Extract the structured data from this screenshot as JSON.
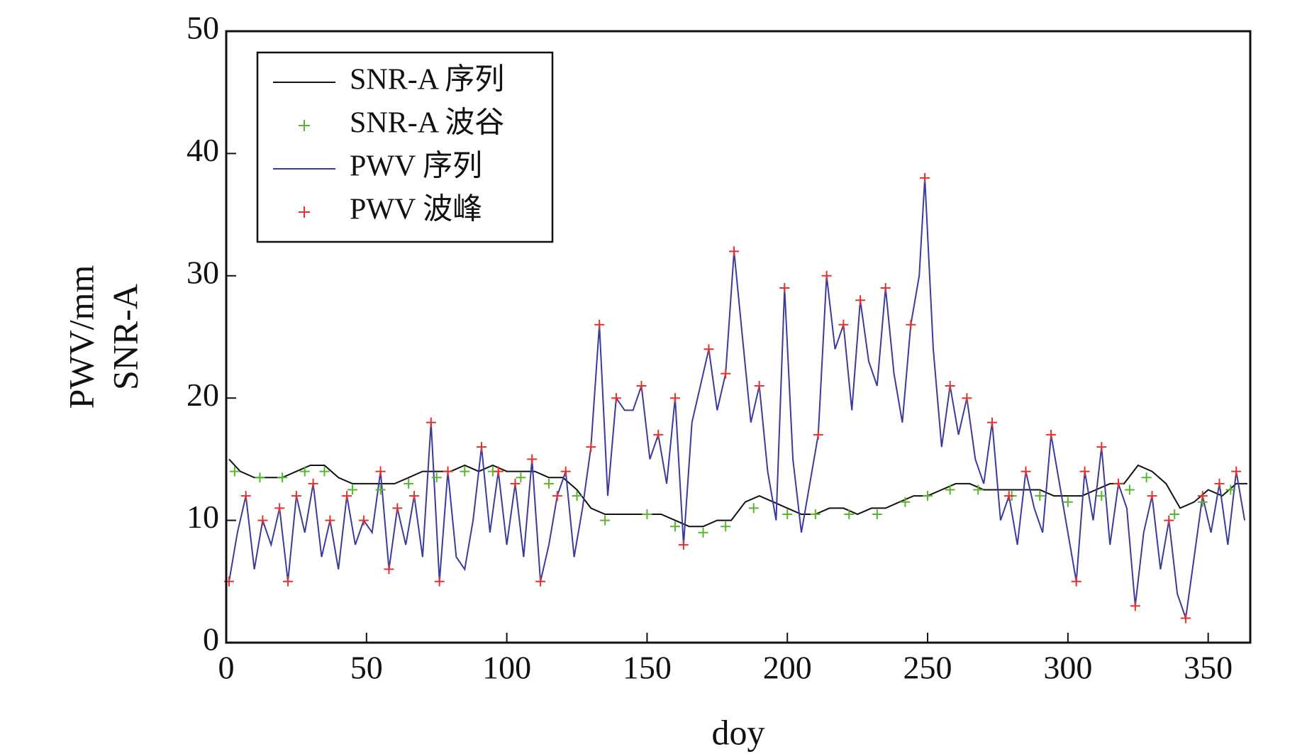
{
  "chart_data": {
    "type": "line",
    "xlabel": "doy",
    "ylabel": [
      "PWV/mm",
      "SNR-A"
    ],
    "xlim": [
      0,
      365
    ],
    "xticks": [
      0,
      50,
      100,
      150,
      200,
      250,
      300,
      350
    ],
    "ylim": [
      0,
      50
    ],
    "yticks": [
      0,
      10,
      20,
      30,
      40,
      50
    ],
    "legend": "upper left",
    "series": [
      {
        "name": "SNR-A 序列",
        "type": "line",
        "color": "#111111",
        "x": [
          1,
          5,
          10,
          15,
          20,
          25,
          30,
          35,
          40,
          45,
          50,
          55,
          60,
          65,
          70,
          75,
          80,
          85,
          90,
          95,
          100,
          105,
          110,
          115,
          120,
          125,
          130,
          135,
          140,
          145,
          150,
          155,
          160,
          165,
          170,
          175,
          180,
          185,
          190,
          195,
          200,
          205,
          210,
          215,
          220,
          225,
          230,
          235,
          240,
          245,
          250,
          255,
          260,
          265,
          270,
          275,
          280,
          285,
          290,
          295,
          300,
          305,
          310,
          315,
          320,
          325,
          330,
          335,
          340,
          345,
          350,
          355,
          360,
          364
        ],
        "values": [
          15,
          14,
          13.5,
          13.5,
          13.5,
          14,
          14.5,
          14.5,
          13.5,
          13,
          13,
          13,
          13,
          13.5,
          14,
          14,
          14,
          14.5,
          14,
          14.5,
          14,
          14,
          14,
          13.5,
          13.5,
          12.5,
          11,
          10.5,
          10.5,
          10.5,
          10.5,
          10.5,
          10,
          9.5,
          9.5,
          10,
          10,
          11.5,
          12,
          11.5,
          11,
          10.5,
          10.5,
          11,
          11,
          10.5,
          11,
          11,
          11.5,
          12,
          12,
          12.5,
          13,
          13,
          12.5,
          12.5,
          12.5,
          12.5,
          12.5,
          12,
          12,
          12,
          12.5,
          13,
          13,
          14.5,
          14,
          13,
          11,
          11.5,
          12.5,
          12,
          13,
          13
        ]
      },
      {
        "name": "SNR-A 波谷",
        "type": "scatter",
        "color": "#5ab52e",
        "x": [
          3,
          12,
          20,
          28,
          35,
          45,
          55,
          65,
          75,
          85,
          95,
          105,
          115,
          125,
          135,
          150,
          160,
          170,
          178,
          188,
          200,
          210,
          222,
          232,
          242,
          250,
          258,
          268,
          280,
          290,
          300,
          312,
          322,
          328,
          338,
          348,
          358
        ],
        "values": [
          14,
          13.5,
          13.5,
          14,
          14,
          12.5,
          12.5,
          13,
          13.5,
          14,
          14,
          13.5,
          13,
          12,
          10,
          10.5,
          9.5,
          9,
          9.5,
          11,
          10.5,
          10.5,
          10.5,
          10.5,
          11.5,
          12,
          12.5,
          12.5,
          12,
          12,
          11.5,
          12,
          12.5,
          13.5,
          10.5,
          11.5,
          12.5
        ]
      },
      {
        "name": "PWV 序列",
        "type": "line",
        "color": "#3b3b9c",
        "x": [
          1,
          4,
          7,
          10,
          13,
          16,
          19,
          22,
          25,
          28,
          31,
          34,
          37,
          40,
          43,
          46,
          49,
          52,
          55,
          58,
          61,
          64,
          67,
          70,
          73,
          76,
          79,
          82,
          85,
          88,
          91,
          94,
          97,
          100,
          103,
          106,
          109,
          112,
          115,
          118,
          121,
          124,
          127,
          130,
          133,
          136,
          139,
          142,
          145,
          148,
          151,
          154,
          157,
          160,
          163,
          166,
          169,
          172,
          175,
          178,
          181,
          184,
          187,
          190,
          193,
          196,
          199,
          202,
          205,
          208,
          211,
          214,
          217,
          220,
          223,
          226,
          229,
          232,
          235,
          238,
          241,
          244,
          247,
          249,
          252,
          255,
          258,
          261,
          264,
          267,
          270,
          273,
          276,
          279,
          282,
          285,
          288,
          291,
          294,
          297,
          300,
          303,
          306,
          309,
          312,
          315,
          318,
          321,
          324,
          327,
          330,
          333,
          336,
          339,
          342,
          345,
          348,
          351,
          354,
          357,
          360,
          363
        ],
        "values": [
          5,
          9,
          12,
          6,
          10,
          8,
          11,
          5,
          12,
          9,
          13,
          7,
          10,
          6,
          12,
          8,
          10,
          9,
          14,
          6,
          11,
          8,
          12,
          7,
          18,
          5,
          14,
          7,
          6,
          10,
          16,
          9,
          14,
          8,
          13,
          7,
          15,
          5,
          8,
          12,
          14,
          7,
          11,
          16,
          26,
          12,
          20,
          19,
          19,
          21,
          15,
          17,
          13,
          20,
          8,
          18,
          21,
          24,
          19,
          22,
          32,
          25,
          18,
          21,
          14,
          10,
          29,
          15,
          9,
          13,
          17,
          30,
          24,
          26,
          19,
          28,
          23,
          21,
          29,
          22,
          18,
          26,
          30,
          38,
          24,
          16,
          21,
          17,
          20,
          15,
          13,
          18,
          10,
          12,
          8,
          14,
          11,
          9,
          17,
          13,
          9,
          5,
          14,
          10,
          16,
          8,
          13,
          11,
          3,
          9,
          12,
          6,
          10,
          4,
          2,
          7,
          12,
          9,
          13,
          8,
          14,
          10
        ]
      },
      {
        "name": "PWV 波峰",
        "type": "scatter",
        "color": "#e8302a",
        "x": [
          1,
          7,
          13,
          19,
          22,
          25,
          31,
          37,
          43,
          49,
          55,
          58,
          61,
          67,
          73,
          76,
          79,
          91,
          97,
          103,
          109,
          112,
          118,
          121,
          130,
          133,
          139,
          148,
          154,
          160,
          163,
          172,
          178,
          181,
          190,
          199,
          211,
          214,
          220,
          226,
          235,
          244,
          249,
          258,
          264,
          273,
          279,
          285,
          294,
          303,
          306,
          312,
          318,
          324,
          330,
          336,
          342,
          348,
          354,
          360
        ],
        "values": [
          5,
          12,
          10,
          11,
          5,
          12,
          13,
          10,
          12,
          10,
          14,
          6,
          11,
          12,
          18,
          5,
          14,
          16,
          14,
          13,
          15,
          5,
          12,
          14,
          16,
          26,
          20,
          21,
          17,
          20,
          8,
          24,
          22,
          32,
          21,
          29,
          17,
          30,
          26,
          28,
          29,
          26,
          38,
          21,
          20,
          18,
          12,
          14,
          17,
          5,
          14,
          16,
          13,
          3,
          12,
          10,
          2,
          12,
          13,
          14
        ]
      }
    ]
  }
}
